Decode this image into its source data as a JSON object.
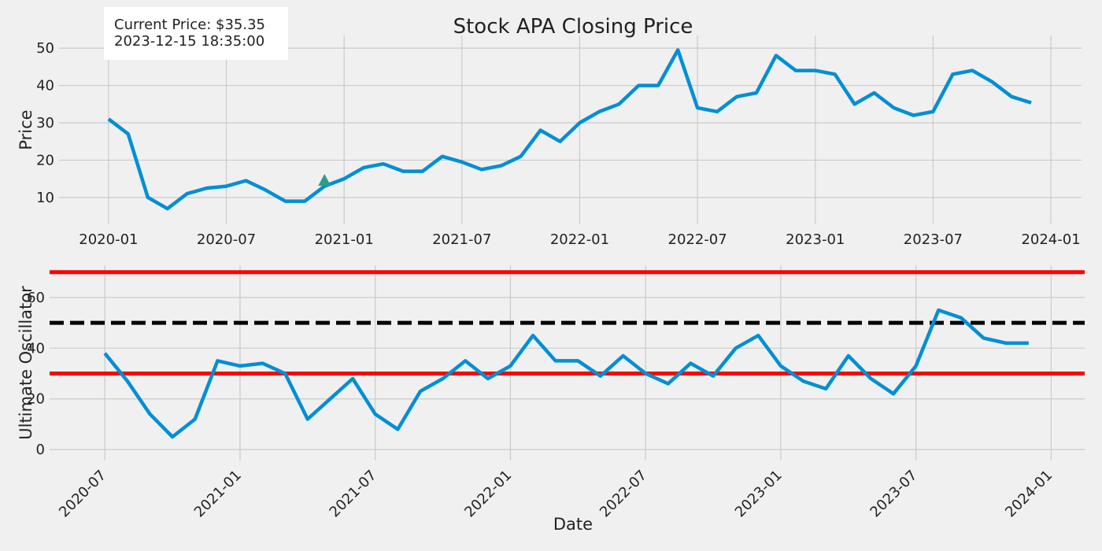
{
  "chart_data": [
    {
      "type": "line",
      "title": "Stock APA Closing Price",
      "ylabel": "Price",
      "annotation": [
        "Current Price: $35.35",
        "2023-12-15 18:35:00"
      ],
      "x": [
        "2020-01",
        "2020-02",
        "2020-03",
        "2020-04",
        "2020-05",
        "2020-06",
        "2020-07",
        "2020-08",
        "2020-09",
        "2020-10",
        "2020-11",
        "2020-12",
        "2021-01",
        "2021-02",
        "2021-03",
        "2021-04",
        "2021-05",
        "2021-06",
        "2021-07",
        "2021-08",
        "2021-09",
        "2021-10",
        "2021-11",
        "2021-12",
        "2022-01",
        "2022-02",
        "2022-03",
        "2022-04",
        "2022-05",
        "2022-06",
        "2022-07",
        "2022-08",
        "2022-09",
        "2022-10",
        "2022-11",
        "2022-12",
        "2023-01",
        "2023-02",
        "2023-03",
        "2023-04",
        "2023-05",
        "2023-06",
        "2023-07",
        "2023-08",
        "2023-09",
        "2023-10",
        "2023-11",
        "2023-12"
      ],
      "values": [
        31,
        27,
        10,
        7,
        11,
        12.5,
        13,
        14.5,
        12,
        9,
        9,
        13,
        15,
        18,
        19,
        17,
        17,
        21,
        19.5,
        17.5,
        18.5,
        21,
        28,
        25,
        30,
        33,
        35,
        40,
        40,
        49.5,
        34,
        33,
        37,
        38,
        48,
        44,
        44,
        43,
        35,
        38,
        34,
        32,
        33,
        43,
        44,
        41,
        37,
        35.35
      ],
      "color": "#008fd5",
      "marker": {
        "x": "2020-12",
        "y": 14.4,
        "color": "#2a9d8f"
      },
      "xlim": [
        "2019-11",
        "2024-02"
      ],
      "xticks": [
        "2020-01",
        "2020-07",
        "2021-01",
        "2021-07",
        "2022-01",
        "2022-07",
        "2023-01",
        "2023-07",
        "2024-01"
      ],
      "ylim": [
        2.8,
        53.4
      ],
      "yticks": [
        10,
        20,
        30,
        40,
        50
      ],
      "grid": true
    },
    {
      "type": "line",
      "ylabel": "Ultimate Oscillator",
      "xlabel": "Date",
      "x": [
        "2020-07",
        "2020-08",
        "2020-09",
        "2020-10",
        "2020-11",
        "2020-12",
        "2021-01",
        "2021-02",
        "2021-03",
        "2021-04",
        "2021-05",
        "2021-06",
        "2021-07",
        "2021-08",
        "2021-09",
        "2021-10",
        "2021-11",
        "2021-12",
        "2022-01",
        "2022-02",
        "2022-03",
        "2022-04",
        "2022-05",
        "2022-06",
        "2022-07",
        "2022-08",
        "2022-09",
        "2022-10",
        "2022-11",
        "2022-12",
        "2023-01",
        "2023-02",
        "2023-03",
        "2023-04",
        "2023-05",
        "2023-06",
        "2023-07",
        "2023-08",
        "2023-09",
        "2023-10",
        "2023-11",
        "2023-12"
      ],
      "values": [
        38,
        27,
        14,
        5,
        12,
        35,
        33,
        34,
        30,
        12,
        20,
        28,
        14,
        8,
        23,
        28,
        35,
        28,
        33,
        45,
        35,
        35,
        29,
        37,
        30,
        26,
        34,
        29,
        40,
        45,
        33,
        27,
        24,
        37,
        28,
        22,
        33,
        55,
        52,
        44,
        42,
        42
      ],
      "color": "#008fd5",
      "hlines": [
        {
          "value": 70,
          "color": "#ff0000"
        },
        {
          "value": 30,
          "color": "#ff0000"
        },
        {
          "value": 50,
          "color": "#000000",
          "dashed": true
        }
      ],
      "xlim": [
        "2020-05",
        "2024-02"
      ],
      "xticks": [
        "2020-07",
        "2021-01",
        "2021-07",
        "2022-01",
        "2022-07",
        "2023-01",
        "2023-07",
        "2024-01"
      ],
      "ylim": [
        -4.3,
        72.7
      ],
      "yticks": [
        0,
        20,
        40,
        60
      ],
      "grid": true
    }
  ]
}
